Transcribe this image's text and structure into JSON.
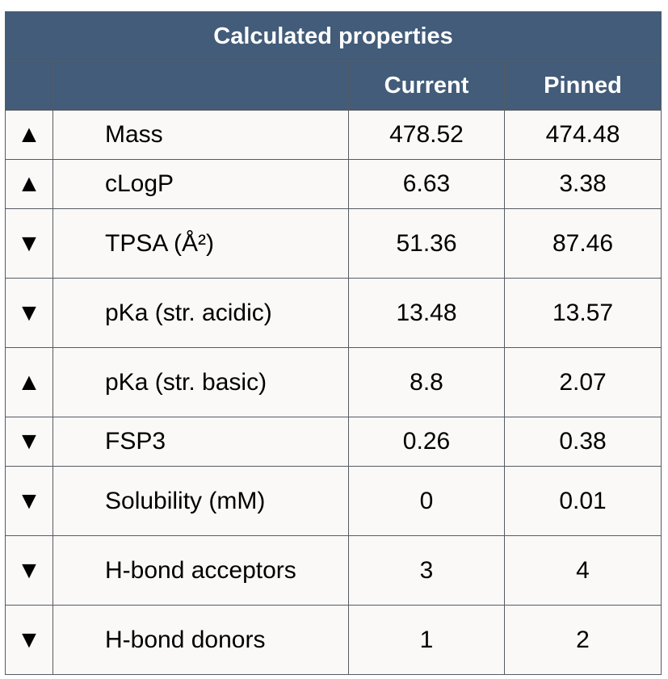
{
  "table": {
    "title": "Calculated properties",
    "columns": {
      "current": "Current",
      "pinned": "Pinned"
    },
    "rows": [
      {
        "arrow": "▲",
        "trend": "up",
        "name": "Mass",
        "current": "478.52",
        "pinned": "474.48"
      },
      {
        "arrow": "▲",
        "trend": "up",
        "name": "cLogP",
        "current": "6.63",
        "pinned": "3.38"
      },
      {
        "arrow": "▼",
        "trend": "down",
        "name": "TPSA (Å²)",
        "current": "51.36",
        "pinned": "87.46"
      },
      {
        "arrow": "▼",
        "trend": "down",
        "name": "pKa (str. acidic)",
        "current": "13.48",
        "pinned": "13.57"
      },
      {
        "arrow": "▲",
        "trend": "up",
        "name": "pKa (str. basic)",
        "current": "8.8",
        "pinned": "2.07"
      },
      {
        "arrow": "▼",
        "trend": "down",
        "name": "FSP3",
        "current": "0.26",
        "pinned": "0.38"
      },
      {
        "arrow": "▼",
        "trend": "down",
        "name": "Solubility (mM)",
        "current": "0",
        "pinned": "0.01"
      },
      {
        "arrow": "▼",
        "trend": "down",
        "name": "H-bond acceptors",
        "current": "3",
        "pinned": "4"
      },
      {
        "arrow": "▼",
        "trend": "down",
        "name": "H-bond donors",
        "current": "1",
        "pinned": "2"
      }
    ]
  },
  "colors": {
    "header_bg": "#425c79",
    "header_text": "#ffffff",
    "cell_bg": "#fbf9f7",
    "border": "#555b63"
  }
}
